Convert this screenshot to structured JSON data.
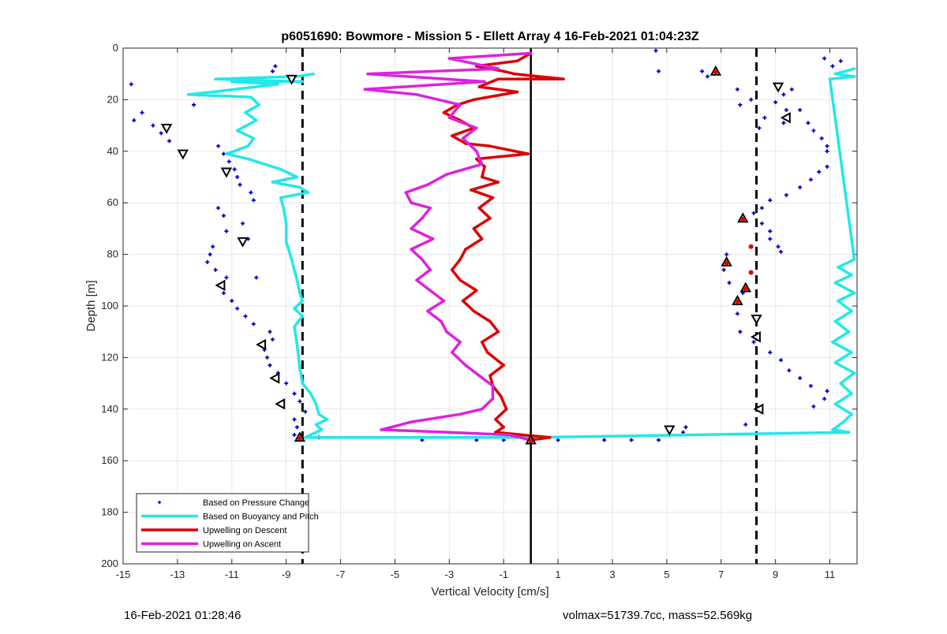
{
  "chart_data": {
    "type": "line",
    "title": "p6051690: Bowmore - Mission 5 - Ellett Array 4 16-Feb-2021 01:04:23Z",
    "xlabel": "Vertical Velocity [cm/s]",
    "ylabel": "Depth [m]",
    "xlim": [
      -15,
      12
    ],
    "ylim": [
      0,
      200
    ],
    "y_reversed": true,
    "xticks": [
      -15,
      -13,
      -11,
      -9,
      -7,
      -5,
      -3,
      -1,
      1,
      3,
      5,
      7,
      9,
      11
    ],
    "yticks": [
      0,
      20,
      40,
      60,
      80,
      100,
      120,
      140,
      160,
      180,
      200
    ],
    "grid": true,
    "legend_position": "bottom-left",
    "legend": [
      "Based on Pressure Change",
      "Based on Buoyancy and Pitch",
      "Upwelling on Descent",
      "Upwelling on Ascent"
    ],
    "reference_lines": {
      "dashed_x": [
        -8.4,
        8.3
      ],
      "solid_x": 0
    },
    "series": [
      {
        "name": "Based on Pressure Change",
        "kind": "scatter",
        "color": "#0000cc",
        "points": [
          [
            -14.7,
            14
          ],
          [
            -9.4,
            7
          ],
          [
            -9.5,
            9
          ],
          [
            -12.2,
            18
          ],
          [
            -12.4,
            22
          ],
          [
            -14.3,
            25
          ],
          [
            -14.6,
            28
          ],
          [
            -13.9,
            30
          ],
          [
            -13.6,
            33
          ],
          [
            -13.3,
            36
          ],
          [
            -11.5,
            38
          ],
          [
            -11.3,
            41
          ],
          [
            -11.1,
            44
          ],
          [
            -10.9,
            47
          ],
          [
            -10.8,
            50
          ],
          [
            -10.7,
            53
          ],
          [
            -10.3,
            56
          ],
          [
            -10.2,
            59
          ],
          [
            -11.5,
            62
          ],
          [
            -11.3,
            65
          ],
          [
            -10.6,
            68
          ],
          [
            -11.2,
            71
          ],
          [
            -10.4,
            74
          ],
          [
            -11.7,
            77
          ],
          [
            -11.8,
            80
          ],
          [
            -11.9,
            83
          ],
          [
            -11.6,
            86
          ],
          [
            -11.2,
            89
          ],
          [
            -10.1,
            89
          ],
          [
            -11.4,
            92
          ],
          [
            -11.3,
            95
          ],
          [
            -11.0,
            98
          ],
          [
            -10.8,
            101
          ],
          [
            -10.5,
            104
          ],
          [
            -10.2,
            107
          ],
          [
            -9.6,
            110
          ],
          [
            -9.5,
            113
          ],
          [
            -9.8,
            117
          ],
          [
            -9.7,
            120
          ],
          [
            -9.6,
            123
          ],
          [
            -9.3,
            126
          ],
          [
            -9.0,
            130
          ],
          [
            -8.7,
            134
          ],
          [
            -8.5,
            137
          ],
          [
            -8.3,
            141
          ],
          [
            -8.7,
            144
          ],
          [
            -8.6,
            147
          ],
          [
            -8.7,
            150
          ],
          [
            -7.8,
            151
          ],
          [
            -4.0,
            152
          ],
          [
            -2.0,
            152
          ],
          [
            -1.0,
            152
          ],
          [
            1.0,
            152
          ],
          [
            2.7,
            152
          ],
          [
            3.7,
            152
          ],
          [
            4.7,
            152
          ],
          [
            5.1,
            150
          ],
          [
            5.6,
            149
          ],
          [
            5.7,
            147
          ],
          [
            4.6,
            1
          ],
          [
            4.7,
            9
          ],
          [
            6.3,
            9
          ],
          [
            6.5,
            11
          ],
          [
            7.6,
            16
          ],
          [
            7.7,
            22
          ],
          [
            8.1,
            20
          ],
          [
            8.4,
            31
          ],
          [
            8.6,
            27
          ],
          [
            9.3,
            29
          ],
          [
            9.4,
            24
          ],
          [
            9.0,
            21
          ],
          [
            9.3,
            18
          ],
          [
            9.6,
            16
          ],
          [
            9.9,
            24
          ],
          [
            10.2,
            29
          ],
          [
            10.4,
            32
          ],
          [
            10.7,
            35
          ],
          [
            10.9,
            38
          ],
          [
            10.9,
            40
          ],
          [
            10.9,
            46
          ],
          [
            10.6,
            48
          ],
          [
            10.3,
            51
          ],
          [
            9.9,
            54
          ],
          [
            9.4,
            57
          ],
          [
            8.8,
            59
          ],
          [
            8.5,
            62
          ],
          [
            8.2,
            64
          ],
          [
            8.5,
            68
          ],
          [
            8.8,
            71
          ],
          [
            8.8,
            74
          ],
          [
            9.1,
            77
          ],
          [
            9.2,
            79
          ],
          [
            7.2,
            80
          ],
          [
            7.1,
            86
          ],
          [
            7.3,
            91
          ],
          [
            7.8,
            95
          ],
          [
            7.6,
            103
          ],
          [
            7.7,
            110
          ],
          [
            8.2,
            114
          ],
          [
            8.8,
            118
          ],
          [
            9.2,
            121
          ],
          [
            9.5,
            125
          ],
          [
            9.9,
            128
          ],
          [
            10.3,
            131
          ],
          [
            10.9,
            133
          ],
          [
            10.8,
            136
          ],
          [
            10.4,
            139
          ],
          [
            7.9,
            146
          ],
          [
            10.8,
            4
          ],
          [
            11.1,
            7
          ],
          [
            11.4,
            5
          ]
        ]
      },
      {
        "name": "Based on Buoyancy and Pitch",
        "kind": "line",
        "color": "#22e8e8",
        "points": [
          [
            -8.0,
            10
          ],
          [
            -8.6,
            11
          ],
          [
            -11.6,
            12
          ],
          [
            -8.4,
            13
          ],
          [
            -11.0,
            13
          ],
          [
            -9.3,
            14
          ],
          [
            -11.7,
            17
          ],
          [
            -12.6,
            18
          ],
          [
            -10.3,
            19
          ],
          [
            -10.0,
            22
          ],
          [
            -10.5,
            25
          ],
          [
            -10.1,
            28
          ],
          [
            -10.8,
            32
          ],
          [
            -10.2,
            35
          ],
          [
            -10.4,
            38
          ],
          [
            -11.2,
            41
          ],
          [
            -10.4,
            43
          ],
          [
            -9.8,
            45
          ],
          [
            -9.2,
            47
          ],
          [
            -8.6,
            50
          ],
          [
            -9.5,
            52
          ],
          [
            -8.5,
            54
          ],
          [
            -8.2,
            56
          ],
          [
            -9.2,
            58
          ],
          [
            -9.1,
            62
          ],
          [
            -9.0,
            68
          ],
          [
            -9.0,
            75
          ],
          [
            -8.8,
            82
          ],
          [
            -8.6,
            90
          ],
          [
            -8.5,
            95
          ],
          [
            -8.4,
            98
          ],
          [
            -8.7,
            101
          ],
          [
            -8.4,
            104
          ],
          [
            -8.7,
            108
          ],
          [
            -8.6,
            115
          ],
          [
            -8.5,
            124
          ],
          [
            -8.4,
            130
          ],
          [
            -8.1,
            134
          ],
          [
            -7.9,
            138
          ],
          [
            -7.8,
            142
          ],
          [
            -7.5,
            144
          ],
          [
            -7.9,
            146
          ],
          [
            -7.7,
            148
          ],
          [
            -8.3,
            151
          ],
          [
            0.0,
            151
          ],
          [
            11.7,
            149
          ],
          [
            11.1,
            148
          ],
          [
            11.5,
            145
          ],
          [
            11.8,
            142
          ],
          [
            11.2,
            138
          ],
          [
            11.8,
            134
          ],
          [
            11.4,
            130
          ],
          [
            11.9,
            126
          ],
          [
            11.2,
            122
          ],
          [
            11.8,
            118
          ],
          [
            11.1,
            114
          ],
          [
            11.7,
            110
          ],
          [
            11.2,
            106
          ],
          [
            11.8,
            102
          ],
          [
            11.3,
            98
          ],
          [
            11.9,
            95
          ],
          [
            11.2,
            91
          ],
          [
            11.8,
            88
          ],
          [
            11.3,
            85
          ],
          [
            11.9,
            82
          ],
          [
            11.0,
            12
          ],
          [
            11.9,
            11
          ],
          [
            11.2,
            10
          ],
          [
            11.9,
            8
          ]
        ]
      },
      {
        "name": "Upwelling on Descent",
        "kind": "line",
        "color": "#dd0000",
        "points": [
          [
            0.0,
            2
          ],
          [
            -0.5,
            5
          ],
          [
            -2.0,
            7
          ],
          [
            -1.0,
            9
          ],
          [
            -0.6,
            10
          ],
          [
            1.2,
            12
          ],
          [
            -1.2,
            12
          ],
          [
            -1.9,
            15
          ],
          [
            -0.5,
            17
          ],
          [
            -2.1,
            20
          ],
          [
            -2.7,
            22
          ],
          [
            -3.2,
            25
          ],
          [
            -2.6,
            28
          ],
          [
            -2.1,
            31
          ],
          [
            -2.9,
            34
          ],
          [
            -2.4,
            37
          ],
          [
            -1.5,
            38
          ],
          [
            -0.1,
            41
          ],
          [
            -2.0,
            43
          ],
          [
            -1.7,
            46
          ],
          [
            -1.8,
            50
          ],
          [
            -1.2,
            52
          ],
          [
            -2.2,
            55
          ],
          [
            -1.4,
            58
          ],
          [
            -1.9,
            62
          ],
          [
            -1.5,
            66
          ],
          [
            -2.1,
            70
          ],
          [
            -1.8,
            74
          ],
          [
            -2.4,
            78
          ],
          [
            -2.6,
            82
          ],
          [
            -2.9,
            86
          ],
          [
            -2.6,
            90
          ],
          [
            -2.0,
            94
          ],
          [
            -2.5,
            98
          ],
          [
            -2.1,
            102
          ],
          [
            -1.5,
            106
          ],
          [
            -1.2,
            110
          ],
          [
            -1.8,
            114
          ],
          [
            -1.6,
            118
          ],
          [
            -1.0,
            123
          ],
          [
            -1.5,
            127
          ],
          [
            -1.4,
            131
          ],
          [
            -1.1,
            135
          ],
          [
            -0.9,
            140
          ],
          [
            -1.3,
            144
          ],
          [
            -1.0,
            147
          ],
          [
            -1.3,
            149
          ],
          [
            0.7,
            151
          ],
          [
            0.0,
            152
          ]
        ]
      },
      {
        "name": "Upwelling on Ascent",
        "kind": "line",
        "color": "#dd22dd",
        "points": [
          [
            0.0,
            2
          ],
          [
            -3.0,
            4
          ],
          [
            -1.2,
            8
          ],
          [
            -6.0,
            10
          ],
          [
            -1.7,
            13
          ],
          [
            -6.1,
            16
          ],
          [
            -4.2,
            18
          ],
          [
            -2.6,
            22
          ],
          [
            -3.0,
            27
          ],
          [
            -2.0,
            31
          ],
          [
            -2.5,
            35
          ],
          [
            -2.0,
            40
          ],
          [
            -1.8,
            45
          ],
          [
            -3.1,
            49
          ],
          [
            -3.8,
            53
          ],
          [
            -4.6,
            56
          ],
          [
            -4.4,
            60
          ],
          [
            -3.7,
            62
          ],
          [
            -4.0,
            66
          ],
          [
            -4.4,
            70
          ],
          [
            -3.6,
            74
          ],
          [
            -4.4,
            78
          ],
          [
            -4.0,
            82
          ],
          [
            -3.7,
            86
          ],
          [
            -4.2,
            90
          ],
          [
            -3.7,
            94
          ],
          [
            -3.2,
            98
          ],
          [
            -3.8,
            102
          ],
          [
            -3.3,
            106
          ],
          [
            -3.1,
            110
          ],
          [
            -2.6,
            114
          ],
          [
            -2.9,
            118
          ],
          [
            -2.4,
            123
          ],
          [
            -1.9,
            127
          ],
          [
            -1.4,
            131
          ],
          [
            -1.4,
            136
          ],
          [
            -1.8,
            140
          ],
          [
            -2.6,
            142
          ],
          [
            -4.4,
            145
          ],
          [
            -5.5,
            148
          ],
          [
            -3.0,
            149
          ],
          [
            -0.8,
            150
          ],
          [
            0.0,
            152
          ]
        ]
      },
      {
        "name": "ascent-markers",
        "kind": "marker",
        "shape": "triangle-up",
        "color": "#000000",
        "points": [
          [
            6.8,
            9
          ],
          [
            0.0,
            152
          ],
          [
            -8.5,
            151
          ],
          [
            7.8,
            66
          ],
          [
            7.2,
            83
          ],
          [
            7.9,
            93
          ],
          [
            7.6,
            98
          ]
        ]
      },
      {
        "name": "descent-markers",
        "kind": "marker",
        "shape": "triangle-down",
        "color": "#000000",
        "points": [
          [
            9.1,
            15
          ],
          [
            8.3,
            105
          ],
          [
            5.1,
            148
          ],
          [
            -10.6,
            75
          ],
          [
            -13.4,
            31
          ],
          [
            -12.8,
            41
          ],
          [
            -11.2,
            48
          ],
          [
            -8.8,
            12
          ]
        ]
      },
      {
        "name": "side-markers",
        "kind": "marker",
        "shape": "triangle-left",
        "color": "#000000",
        "points": [
          [
            9.4,
            27
          ],
          [
            8.3,
            112
          ],
          [
            8.4,
            140
          ],
          [
            -11.4,
            92
          ],
          [
            -9.9,
            115
          ],
          [
            -9.4,
            128
          ],
          [
            -9.2,
            138
          ]
        ]
      },
      {
        "name": "red-dots",
        "kind": "dot",
        "color": "#dd0000",
        "points": [
          [
            8.1,
            77
          ],
          [
            8.1,
            87
          ]
        ]
      }
    ]
  },
  "footer": {
    "left": "16-Feb-2021 01:28:46",
    "right": "volmax=51739.7cc, mass=52.569kg"
  }
}
